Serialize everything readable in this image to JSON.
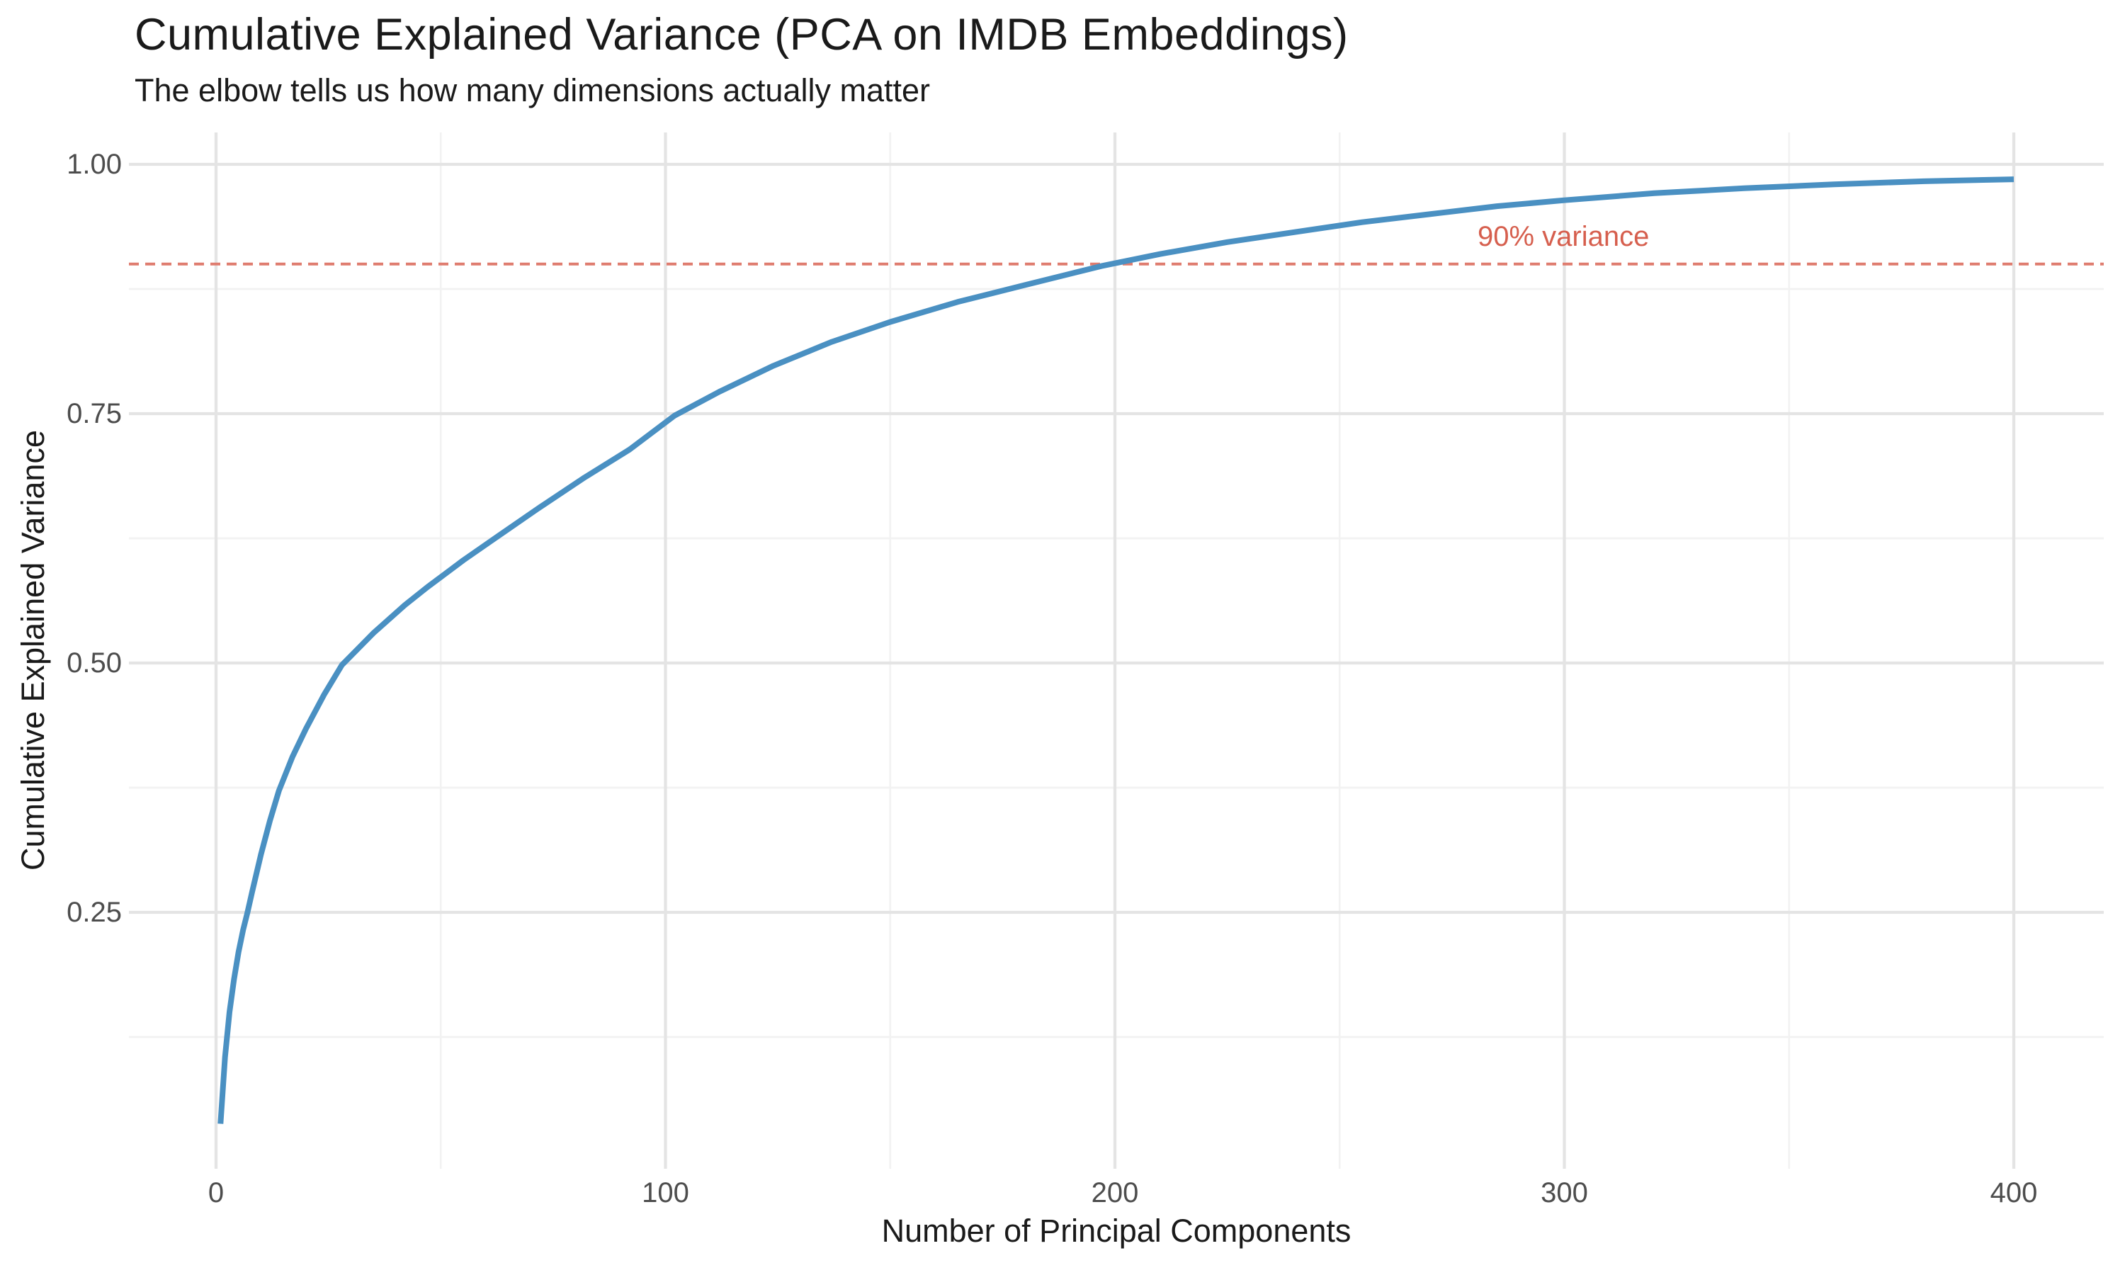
{
  "chart_data": {
    "type": "line",
    "title": "Cumulative Explained Variance (PCA on IMDB Embeddings)",
    "subtitle": "The elbow tells us how many dimensions actually matter",
    "xlabel": "Number of Principal Components",
    "ylabel": "Cumulative Explained Variance",
    "xlim": [
      0,
      400
    ],
    "ylim": [
      0,
      1.03
    ],
    "grid": "major+minor",
    "legend": "none",
    "background": "#ffffff",
    "grid_major_color": "#e4e4e4",
    "grid_minor_color": "#f2f2f2",
    "axis_text_color": "#4d4d4d",
    "x_axis": {
      "tick_values": [
        0,
        100,
        200,
        300,
        400
      ],
      "tick_labels": [
        "0",
        "100",
        "200",
        "300",
        "400"
      ],
      "minor_ticks": [
        50,
        150,
        250,
        350
      ]
    },
    "y_axis": {
      "tick_values": [
        0.25,
        0.5,
        0.75,
        1.0
      ],
      "tick_labels": [
        "0.25",
        "0.50",
        "0.75",
        "1.00"
      ],
      "minor_ticks": [
        0.125,
        0.375,
        0.625,
        0.875
      ]
    },
    "threshold": {
      "value": 0.9,
      "label": "90% variance",
      "label_color": "#d65f4e",
      "line_color": "#df7c6f",
      "style": "dashed"
    },
    "series": [
      {
        "name": "Cumulative explained variance",
        "color": "#4a90c2",
        "points": [
          [
            1,
            0.038
          ],
          [
            2,
            0.105
          ],
          [
            3,
            0.15
          ],
          [
            4,
            0.183
          ],
          [
            5,
            0.21
          ],
          [
            6,
            0.232
          ],
          [
            7,
            0.25
          ],
          [
            8,
            0.27
          ],
          [
            10,
            0.308
          ],
          [
            12,
            0.342
          ],
          [
            14,
            0.372
          ],
          [
            17,
            0.406
          ],
          [
            20,
            0.434
          ],
          [
            24,
            0.468
          ],
          [
            28,
            0.498
          ],
          [
            35,
            0.53
          ],
          [
            42,
            0.558
          ],
          [
            47,
            0.576
          ],
          [
            55,
            0.603
          ],
          [
            63,
            0.628
          ],
          [
            72,
            0.656
          ],
          [
            82,
            0.686
          ],
          [
            92,
            0.714
          ],
          [
            102,
            0.748
          ],
          [
            112,
            0.772
          ],
          [
            124,
            0.798
          ],
          [
            137,
            0.822
          ],
          [
            150,
            0.842
          ],
          [
            165,
            0.862
          ],
          [
            180,
            0.879
          ],
          [
            197,
            0.898
          ],
          [
            210,
            0.91
          ],
          [
            225,
            0.922
          ],
          [
            240,
            0.932
          ],
          [
            255,
            0.942
          ],
          [
            270,
            0.95
          ],
          [
            285,
            0.958
          ],
          [
            300,
            0.964
          ],
          [
            320,
            0.971
          ],
          [
            340,
            0.976
          ],
          [
            360,
            0.98
          ],
          [
            380,
            0.983
          ],
          [
            400,
            0.985
          ]
        ]
      }
    ]
  }
}
